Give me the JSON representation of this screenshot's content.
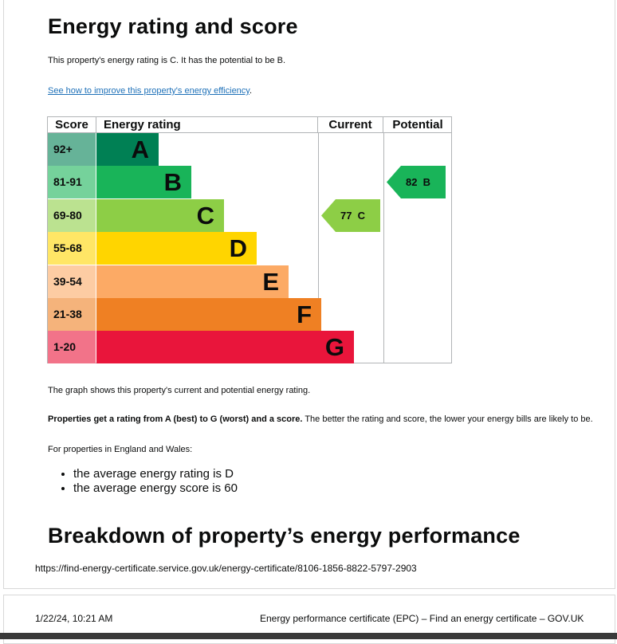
{
  "heading": "Energy rating and score",
  "intro": "This property's energy rating is C. It has the potential to be B.",
  "improve_link": "See how to improve this property's energy efficiency",
  "improve_link_end": ".",
  "table": {
    "headers": {
      "score": "Score",
      "rating": "Energy rating",
      "current": "Current",
      "potential": "Potential"
    },
    "bands": [
      {
        "score": "92+",
        "letter": "A",
        "color": "#008054",
        "score_bg": "#66b398",
        "width_frac": 0.23
      },
      {
        "score": "81-91",
        "letter": "B",
        "color": "#19b459",
        "score_bg": "#75d29b",
        "width_frac": 0.35
      },
      {
        "score": "69-80",
        "letter": "C",
        "color": "#8dce46",
        "score_bg": "#bbe290",
        "width_frac": 0.47
      },
      {
        "score": "55-68",
        "letter": "D",
        "color": "#ffd500",
        "score_bg": "#ffe666",
        "width_frac": 0.59
      },
      {
        "score": "39-54",
        "letter": "E",
        "color": "#fcaa65",
        "score_bg": "#fdcca3",
        "width_frac": 0.71
      },
      {
        "score": "21-38",
        "letter": "F",
        "color": "#ef8023",
        "score_bg": "#f5b37b",
        "width_frac": 0.83
      },
      {
        "score": "1-20",
        "letter": "G",
        "color": "#e9153b",
        "score_bg": "#f27389",
        "width_frac": 0.95
      }
    ],
    "current": {
      "label": "77  C",
      "band": 2,
      "color": "#8dce46"
    },
    "potential": {
      "label": "82  B",
      "band": 1,
      "color": "#19b459"
    }
  },
  "graph_note": "The graph shows this property's current and potential energy rating.",
  "rating_bold": "Properties get a rating from A (best) to G (worst) and a score.",
  "rating_rest": " The better the rating and score, the lower your energy bills are likely to be.",
  "england_wales": "For properties in England and Wales:",
  "averages": [
    "the average energy rating is D",
    "the average energy score is 60"
  ],
  "heading2": "Breakdown of property’s energy performance",
  "footer_url": "https://find-energy-certificate.service.gov.uk/energy-certificate/8106-1856-8822-5797-2903",
  "footer_date": "1/22/24, 10:21 AM",
  "footer_title": "Energy performance certificate (EPC) – Find an energy certificate – GOV.UK"
}
